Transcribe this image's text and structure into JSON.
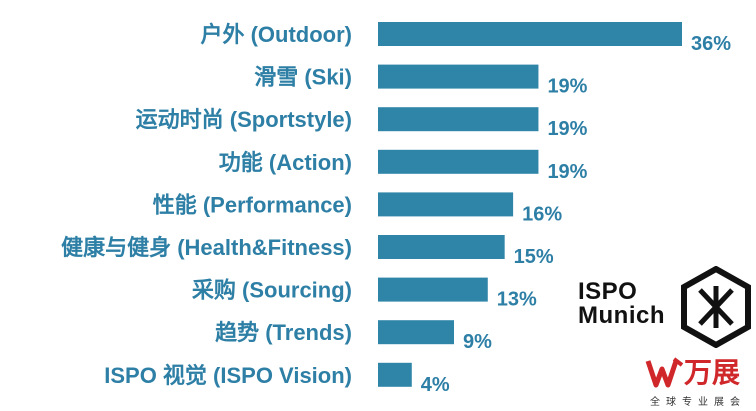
{
  "chart_data": {
    "type": "bar",
    "orientation": "horizontal",
    "categories": [
      "户外 (Outdoor)",
      "滑雪 (Ski)",
      "运动时尚 (Sportstyle)",
      "功能 (Action)",
      "性能 (Performance)",
      "健康与健身 (Health&Fitness)",
      "采购 (Sourcing)",
      "趋势 (Trends)",
      "ISPO 视觉 (ISPO Vision)"
    ],
    "values": [
      36,
      19,
      19,
      19,
      16,
      15,
      13,
      9,
      4
    ],
    "value_labels": [
      "36%",
      "19%",
      "19%",
      "19%",
      "16%",
      "15%",
      "13%",
      "9%",
      "4%"
    ],
    "unit": "%",
    "bar_color": "#2f85a8",
    "label_color": "#2e7fa6",
    "grid": false,
    "xlim": [
      0,
      36
    ]
  },
  "logos": {
    "ispo": {
      "line1": "ISPO",
      "line2": "Munich",
      "mark_icon": "ispo-cross-icon"
    },
    "wanzhan": {
      "name": "万展",
      "subtitle": "全球专业展会",
      "color": "#d0282a",
      "mark_icon": "wanzhan-mark-icon"
    }
  }
}
